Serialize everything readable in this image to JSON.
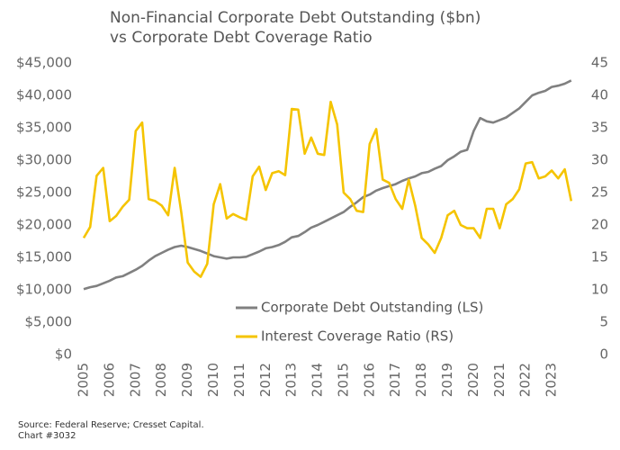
{
  "chart_data": {
    "type": "line",
    "title": "Non-Financial Corporate Debt Outstanding ($bn)",
    "subtitle": "vs Corporate Debt Coverage Ratio",
    "footnotes": [
      "Source: Federal Reserve; Cresset Capital.",
      "Chart #3032"
    ],
    "x": [
      2005,
      2005.25,
      2005.5,
      2005.75,
      2006,
      2006.25,
      2006.5,
      2006.75,
      2007,
      2007.25,
      2007.5,
      2007.75,
      2008,
      2008.25,
      2008.5,
      2008.75,
      2009,
      2009.25,
      2009.5,
      2009.75,
      2010,
      2010.25,
      2010.5,
      2010.75,
      2011,
      2011.25,
      2011.5,
      2011.75,
      2012,
      2012.25,
      2012.5,
      2012.75,
      2013,
      2013.25,
      2013.5,
      2013.75,
      2014,
      2014.25,
      2014.5,
      2014.75,
      2015,
      2015.25,
      2015.5,
      2015.75,
      2016,
      2016.25,
      2016.5,
      2016.75,
      2017,
      2017.25,
      2017.5,
      2017.75,
      2018,
      2018.25,
      2018.5,
      2018.75,
      2019,
      2019.25,
      2019.5,
      2019.75,
      2020,
      2020.25,
      2020.5,
      2020.75,
      2021,
      2021.25,
      2021.5,
      2021.75,
      2022,
      2022.25,
      2022.5,
      2022.75,
      2023,
      2023.25,
      2023.5,
      2023.75
    ],
    "series": [
      {
        "name": "Corporate Debt Outstanding (LS)",
        "color": "#808080",
        "axis": "y",
        "values": [
          10100,
          10400,
          10600,
          11000,
          11400,
          11900,
          12100,
          12600,
          13100,
          13700,
          14500,
          15200,
          15700,
          16200,
          16600,
          16800,
          16600,
          16300,
          16000,
          15600,
          15200,
          15000,
          14800,
          15000,
          15000,
          15100,
          15500,
          15900,
          16400,
          16600,
          16900,
          17400,
          18100,
          18300,
          18900,
          19600,
          20000,
          20500,
          21000,
          21500,
          22000,
          22800,
          23500,
          24300,
          24700,
          25300,
          25700,
          26000,
          26300,
          26800,
          27200,
          27500,
          28000,
          28200,
          28700,
          29100,
          30000,
          30600,
          31300,
          31600,
          34500,
          36500,
          36000,
          35800,
          36200,
          36600,
          37300,
          38000,
          39000,
          40000,
          40400,
          40700,
          41300,
          41500,
          41800,
          42300
        ]
      },
      {
        "name": "Interest Coverage Ratio (RS)",
        "color": "#f5c400",
        "axis": "y2",
        "values": [
          18,
          19.7,
          27.6,
          28.8,
          20.6,
          21.4,
          22.8,
          23.9,
          34.5,
          35.8,
          24,
          23.7,
          23,
          21.5,
          28.8,
          22,
          14.2,
          12.8,
          12,
          14,
          23.2,
          26.3,
          21,
          21.7,
          21.2,
          20.8,
          27.5,
          29,
          25.4,
          28,
          28.3,
          27.7,
          37.9,
          37.8,
          31,
          33.5,
          31,
          30.8,
          39,
          35.5,
          25,
          24,
          22.2,
          22,
          32.5,
          34.8,
          27,
          26.5,
          24,
          22.5,
          27,
          23,
          18,
          17,
          15.7,
          18,
          21.5,
          22.2,
          20,
          19.5,
          19.5,
          18,
          22.5,
          22.5,
          19.5,
          23.2,
          24,
          25.5,
          29.5,
          29.7,
          27.2,
          27.5,
          28.4,
          27.2,
          28.6,
          23.7
        ]
      }
    ],
    "xlim": [
      2005,
      2024
    ],
    "xticks": [
      2005,
      2006,
      2007,
      2008,
      2009,
      2010,
      2011,
      2012,
      2013,
      2014,
      2015,
      2016,
      2017,
      2018,
      2019,
      2020,
      2021,
      2022,
      2023
    ],
    "ylim": [
      0,
      45000
    ],
    "yticks": [
      {
        "value": 0,
        "label": "$0"
      },
      {
        "value": 5000,
        "label": "$5,000"
      },
      {
        "value": 10000,
        "label": "$10,000"
      },
      {
        "value": 15000,
        "label": "$15,000"
      },
      {
        "value": 20000,
        "label": "$20,000"
      },
      {
        "value": 25000,
        "label": "$25,000"
      },
      {
        "value": 30000,
        "label": "$30,000"
      },
      {
        "value": 35000,
        "label": "$35,000"
      },
      {
        "value": 40000,
        "label": "$40,000"
      },
      {
        "value": 45000,
        "label": "$45,000"
      }
    ],
    "y2lim": [
      0,
      45
    ],
    "y2ticks": [
      0,
      5,
      10,
      15,
      20,
      25,
      30,
      35,
      40,
      45
    ],
    "grid": false,
    "legend": "bottom-center"
  }
}
